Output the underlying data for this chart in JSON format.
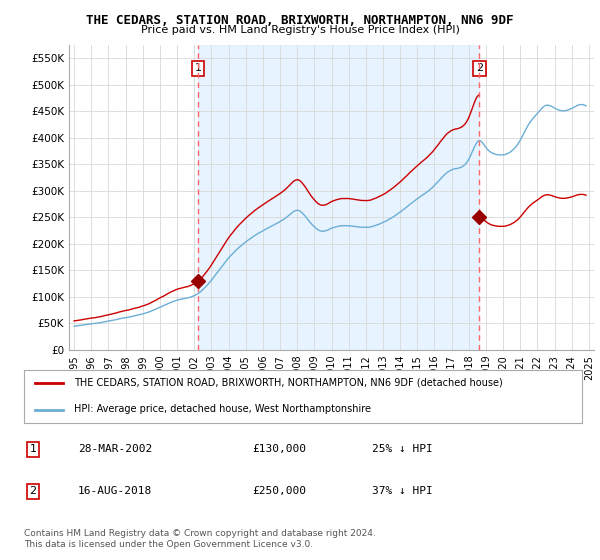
{
  "title": "THE CEDARS, STATION ROAD, BRIXWORTH, NORTHAMPTON, NN6 9DF",
  "subtitle": "Price paid vs. HM Land Registry's House Price Index (HPI)",
  "hpi_color": "#6BAED6",
  "red_color": "#CC0000",
  "vline_color": "#FF6666",
  "marker_color": "#990000",
  "bg_color": "#FFFFFF",
  "grid_color": "#D8D8D8",
  "shade_color": "#DDEEFF",
  "legend_label_red": "THE CEDARS, STATION ROAD, BRIXWORTH, NORTHAMPTON, NN6 9DF (detached house)",
  "legend_label_blue": "HPI: Average price, detached house, West Northamptonshire",
  "footnote": "Contains HM Land Registry data © Crown copyright and database right 2024.\nThis data is licensed under the Open Government Licence v3.0.",
  "table_rows": [
    {
      "num": "1",
      "date": "28-MAR-2002",
      "price": "£130,000",
      "hpi_note": "25% ↓ HPI"
    },
    {
      "num": "2",
      "date": "16-AUG-2018",
      "price": "£250,000",
      "hpi_note": "37% ↓ HPI"
    }
  ],
  "vline1_x": 2002.23,
  "vline2_x": 2018.62,
  "marker1_x": 2002.23,
  "marker1_y": 130000,
  "marker2_x": 2018.62,
  "marker2_y": 250000,
  "ylim": [
    0,
    575000
  ],
  "xlim_left": 1994.7,
  "xlim_right": 2025.3,
  "yticks": [
    0,
    50000,
    100000,
    150000,
    200000,
    250000,
    300000,
    350000,
    400000,
    450000,
    500000,
    550000
  ],
  "ytick_labels": [
    "£0",
    "£50K",
    "£100K",
    "£150K",
    "£200K",
    "£250K",
    "£300K",
    "£350K",
    "£400K",
    "£450K",
    "£500K",
    "£550K"
  ],
  "xticks": [
    1995,
    1996,
    1997,
    1998,
    1999,
    2000,
    2001,
    2002,
    2003,
    2004,
    2005,
    2006,
    2007,
    2008,
    2009,
    2010,
    2011,
    2012,
    2013,
    2014,
    2015,
    2016,
    2017,
    2018,
    2019,
    2020,
    2021,
    2022,
    2023,
    2024,
    2025
  ]
}
